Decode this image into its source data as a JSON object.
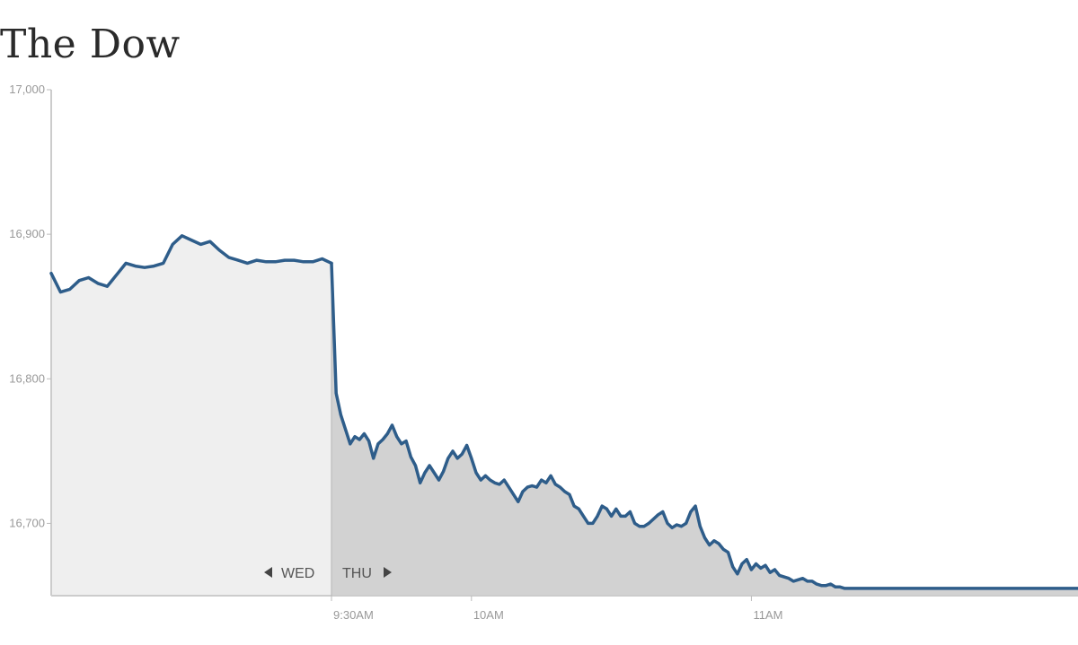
{
  "title": "The Dow",
  "chart_data": {
    "type": "area",
    "ylim": [
      16650,
      17000
    ],
    "y_ticks": [
      {
        "value": 17000,
        "label": "17,000"
      },
      {
        "value": 16900,
        "label": "16,900"
      },
      {
        "value": 16800,
        "label": "16,800"
      },
      {
        "value": 16700,
        "label": "16,700"
      }
    ],
    "x_ticks": [
      {
        "t": 0,
        "label": "9:30AM"
      },
      {
        "t": 30,
        "label": "10AM"
      },
      {
        "t": 90,
        "label": "11AM"
      }
    ],
    "x_range": [
      -60,
      160
    ],
    "series": [
      {
        "id": "wed",
        "x": [
          -60,
          -58,
          -56,
          -54,
          -52,
          -50,
          -48,
          -46,
          -44,
          -42,
          -40,
          -38,
          -36,
          -34,
          -32,
          -30,
          -28,
          -26,
          -24,
          -22,
          -20,
          -18,
          -16,
          -14,
          -12,
          -10,
          -8,
          -6,
          -4,
          -2,
          0
        ],
        "y": [
          16873,
          16860,
          16862,
          16868,
          16870,
          16866,
          16864,
          16872,
          16880,
          16878,
          16877,
          16878,
          16880,
          16893,
          16899,
          16896,
          16893,
          16895,
          16889,
          16884,
          16882,
          16880,
          16882,
          16881,
          16881,
          16882,
          16882,
          16881,
          16881,
          16883,
          16880
        ]
      },
      {
        "id": "thu",
        "x": [
          0,
          1,
          2,
          3,
          4,
          5,
          6,
          7,
          8,
          9,
          10,
          11,
          12,
          13,
          14,
          15,
          16,
          17,
          18,
          19,
          20,
          21,
          22,
          23,
          24,
          25,
          26,
          27,
          28,
          29,
          30,
          31,
          32,
          33,
          34,
          35,
          36,
          37,
          38,
          39,
          40,
          41,
          42,
          43,
          44,
          45,
          46,
          47,
          48,
          49,
          50,
          51,
          52,
          53,
          54,
          55,
          56,
          57,
          58,
          59,
          60,
          61,
          62,
          63,
          64,
          65,
          66,
          67,
          68,
          69,
          70,
          71,
          72,
          73,
          74,
          75,
          76,
          77,
          78,
          79,
          80,
          81,
          82,
          83,
          84,
          85,
          86,
          87,
          88,
          89,
          90,
          91,
          92,
          93,
          94,
          95,
          96,
          97,
          98,
          99,
          100,
          101,
          102,
          103,
          104,
          105,
          106,
          107,
          108,
          109,
          110,
          111,
          112,
          113,
          114,
          115,
          116,
          117,
          118,
          119,
          120,
          121,
          122,
          123,
          124,
          125,
          126,
          127,
          128,
          129,
          130,
          131,
          132,
          133,
          134,
          135,
          136,
          137,
          138,
          139,
          140,
          141,
          142,
          143,
          144,
          145,
          146,
          147,
          148,
          149,
          150,
          151,
          152,
          153,
          154,
          155,
          156,
          157,
          158,
          159,
          160
        ],
        "y": [
          16880,
          16790,
          16775,
          16765,
          16755,
          16760,
          16758,
          16762,
          16757,
          16745,
          16755,
          16758,
          16762,
          16768,
          16760,
          16755,
          16757,
          16746,
          16740,
          16728,
          16735,
          16740,
          16735,
          16730,
          16736,
          16745,
          16750,
          16745,
          16748,
          16754,
          16745,
          16735,
          16730,
          16733,
          16730,
          16728,
          16727,
          16730,
          16725,
          16720,
          16715,
          16722,
          16725,
          16726,
          16725,
          16730,
          16728,
          16733,
          16727,
          16725,
          16722,
          16720,
          16712,
          16710,
          16705,
          16700,
          16700,
          16705,
          16712,
          16710,
          16705,
          16710,
          16705,
          16705,
          16708,
          16700,
          16698,
          16698,
          16700,
          16703,
          16706,
          16708,
          16700,
          16697,
          16699,
          16698,
          16700,
          16708,
          16712,
          16698,
          16690,
          16685,
          16688,
          16686,
          16682,
          16680,
          16670,
          16665,
          16672,
          16675,
          16668,
          16672,
          16669,
          16671,
          16666,
          16668,
          16664,
          16663,
          16662,
          16660,
          16661,
          16662,
          16660,
          16660,
          16658,
          16657,
          16657,
          16658,
          16656,
          16656,
          16655,
          16655,
          16655,
          16655,
          16655,
          16655,
          16655,
          16655,
          16655,
          16655,
          16655,
          16655,
          16655,
          16655,
          16655,
          16655,
          16655,
          16655,
          16655,
          16655,
          16655,
          16655,
          16655,
          16655,
          16655,
          16655,
          16655,
          16655,
          16655,
          16655,
          16655,
          16655,
          16655,
          16655,
          16655,
          16655,
          16655,
          16655,
          16655,
          16655,
          16655,
          16655,
          16655,
          16655,
          16655,
          16655,
          16655,
          16655,
          16655,
          16655,
          16655
        ]
      }
    ],
    "day_labels": {
      "previous": "WED",
      "current": "THU"
    },
    "colors": {
      "line": "#2e5d8a",
      "prev_fill": "#efefef",
      "curr_fill": "#d2d2d2",
      "axis": "#cccccc"
    }
  }
}
